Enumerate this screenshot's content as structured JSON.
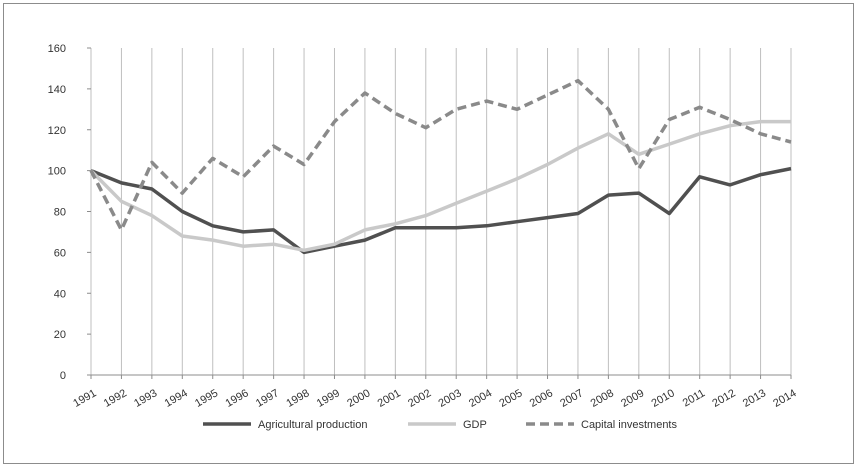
{
  "chart_data": {
    "type": "line",
    "title": "",
    "xlabel": "",
    "ylabel": "",
    "ylim": [
      0,
      160
    ],
    "yticks": [
      "0",
      "20",
      "40",
      "60",
      "80",
      "100",
      "120",
      "140",
      "160"
    ],
    "grid": "vertical",
    "legend_position": "bottom",
    "categories": [
      "1991",
      "1992",
      "1993",
      "1994",
      "1995",
      "1996",
      "1997",
      "1998",
      "1999",
      "2000",
      "2001",
      "2002",
      "2003",
      "2004",
      "2005",
      "2006",
      "2007",
      "2008",
      "2009",
      "2010",
      "2011",
      "2012",
      "2013",
      "2014"
    ],
    "series": [
      {
        "name": "Agricultural production",
        "color": "#505050",
        "dash": "solid",
        "values": [
          100,
          94,
          91,
          80,
          73,
          70,
          71,
          60,
          63,
          66,
          72,
          72,
          72,
          73,
          75,
          77,
          79,
          88,
          89,
          79,
          97,
          93,
          98,
          101
        ]
      },
      {
        "name": "GDP",
        "color": "#c9c9c9",
        "dash": "solid",
        "values": [
          100,
          85,
          78,
          68,
          66,
          63,
          64,
          61,
          64,
          71,
          74,
          78,
          84,
          90,
          96,
          103,
          111,
          118,
          108,
          113,
          118,
          122,
          124,
          124
        ]
      },
      {
        "name": "Capital investments",
        "color": "#8a8a8a",
        "dash": "dashed",
        "values": [
          100,
          71,
          104,
          89,
          106,
          97,
          112,
          103,
          124,
          138,
          128,
          121,
          130,
          134,
          130,
          137,
          144,
          130,
          101,
          125,
          131,
          125,
          118,
          114
        ]
      }
    ]
  }
}
